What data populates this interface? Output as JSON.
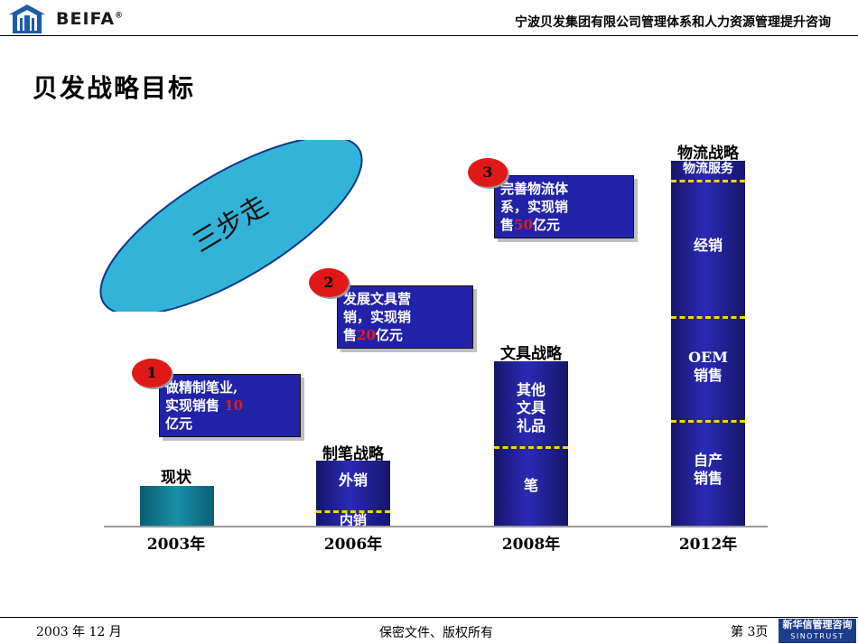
{
  "header": {
    "logo_text": "BEIFA",
    "logo_mark": "®",
    "title": "宁波贝发集团有限公司管理体系和人力资源管理提升咨询"
  },
  "page_title": "贝发战略目标",
  "ellipse_text": "三步走",
  "bars": {
    "b2003": {
      "year": "2003年",
      "strategy": "现状"
    },
    "b2006": {
      "year": "2006年",
      "strategy": "制笔战略",
      "seg_top": "外销",
      "seg_bottom": "内销"
    },
    "b2008": {
      "year": "2008年",
      "strategy": "文具战略",
      "seg_top": "其他\n文具\n礼品",
      "seg_bottom": "笔"
    },
    "b2012": {
      "year": "2012年",
      "strategy": "物流战略",
      "seg1": "物流服务",
      "seg2": "经销",
      "seg3": "OEM\n销售",
      "seg4": "自产\n销售"
    }
  },
  "callouts": {
    "c1": {
      "number": "1",
      "text_a": "做精制笔业,",
      "text_b": "实现销售",
      "amount": "10",
      "text_c": "亿元"
    },
    "c2": {
      "number": "2",
      "text_a": "发展文具营",
      "text_b": "销，实现销",
      "text_c": "售",
      "amount": "20",
      "text_d": "亿元"
    },
    "c3": {
      "number": "3",
      "text_a": "完善物流体",
      "text_b": "系，实现销",
      "text_c": "售",
      "amount": "50",
      "text_d": "亿元"
    }
  },
  "footer": {
    "date": "2003 年 12 月",
    "center": "保密文件、版权所有",
    "page": "第 3页",
    "logo_cn": "新华信管理咨询",
    "logo_en": "SINOTRUST"
  }
}
